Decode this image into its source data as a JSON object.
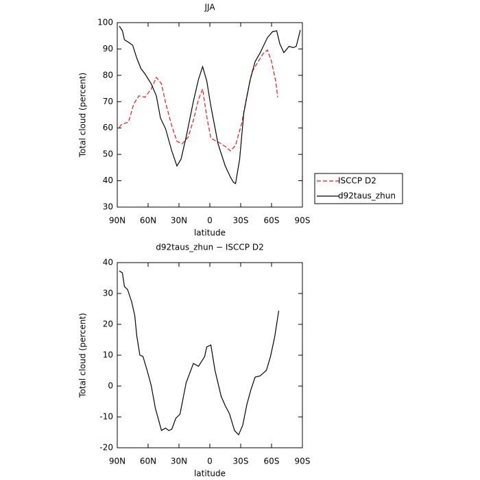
{
  "chart_data": [
    {
      "type": "line",
      "title": "JJA",
      "x_label": "latitude",
      "y_label": "Total cloud (percent)",
      "xlim": [
        90,
        -90
      ],
      "xticks": [
        {
          "value": 90,
          "label": "90N"
        },
        {
          "value": 60,
          "label": "60N"
        },
        {
          "value": 30,
          "label": "30N"
        },
        0,
        {
          "value": -30,
          "label": "30S"
        },
        {
          "value": -60,
          "label": "60S"
        },
        {
          "value": -90,
          "label": "90S"
        }
      ],
      "ylim": [
        30,
        100
      ],
      "yticks": [
        30,
        40,
        50,
        60,
        70,
        80,
        90,
        100
      ],
      "legend": "right",
      "series": [
        {
          "name": "ISCCP D2",
          "color": "#e8141b",
          "line_style": "dashed",
          "x": [
            88,
            86,
            79,
            74,
            69,
            63,
            57,
            52,
            47,
            43,
            37,
            32,
            27,
            21,
            16,
            11,
            7,
            3,
            -1,
            -9,
            -15,
            -20,
            -25,
            -31,
            -36,
            -41,
            -47,
            -52,
            -56,
            -60,
            -64,
            -66
          ],
          "values": [
            60.2,
            61.3,
            62.3,
            69.1,
            72.2,
            71.7,
            74.8,
            79.2,
            76.8,
            69.6,
            60.8,
            55.0,
            54.0,
            56.6,
            62.9,
            70.9,
            74.8,
            64.4,
            56.1,
            54.5,
            53.0,
            51.3,
            53.4,
            61.8,
            72.2,
            81.3,
            85.2,
            88.3,
            89.6,
            85.2,
            77.9,
            71.7
          ]
        },
        {
          "name": "d92taus_zhun",
          "color": "#000000",
          "line_style": "solid",
          "x": [
            88,
            85,
            83,
            79,
            75,
            71,
            67,
            63,
            57,
            52,
            48,
            43,
            37,
            32,
            28,
            23,
            16,
            11,
            7,
            3,
            -1,
            -8,
            -15,
            -20,
            -23,
            -25,
            -29,
            -33,
            -39,
            -44,
            -49,
            -56,
            -61,
            -65,
            -68,
            -72,
            -77,
            -81,
            -84,
            -88
          ],
          "values": [
            98.7,
            96.9,
            93.5,
            92.5,
            91.4,
            86.5,
            82.6,
            80.5,
            76.8,
            72.2,
            63.8,
            59.7,
            51.3,
            45.6,
            48.2,
            56.6,
            70.1,
            78.5,
            83.3,
            77.9,
            68.3,
            54.0,
            45.6,
            41.4,
            39.4,
            38.9,
            48.2,
            65.7,
            77.9,
            85.2,
            88.6,
            94.3,
            96.6,
            96.9,
            92.0,
            88.6,
            91.0,
            90.5,
            91.0,
            97.2
          ]
        }
      ]
    },
    {
      "type": "line",
      "title": "d92taus_zhun − ISCCP D2",
      "x_label": "latitude",
      "y_label": "Total cloud (percent)",
      "xlim": [
        90,
        -90
      ],
      "xticks": [
        {
          "value": 90,
          "label": "90N"
        },
        {
          "value": 60,
          "label": "60N"
        },
        {
          "value": 30,
          "label": "30N"
        },
        0,
        {
          "value": -30,
          "label": "30S"
        },
        {
          "value": -60,
          "label": "60S"
        },
        {
          "value": -90,
          "label": "90S"
        }
      ],
      "ylim": [
        -20,
        40
      ],
      "yticks": [
        -20,
        -10,
        0,
        10,
        20,
        30,
        40
      ],
      "series": [
        {
          "color": "#000000",
          "line_style": "solid",
          "x": [
            88,
            85,
            83,
            80,
            76,
            73,
            71,
            68,
            65,
            61,
            57,
            53,
            47,
            43,
            40,
            37,
            33,
            29,
            23,
            16,
            11,
            5,
            3,
            -1,
            -5,
            -11,
            -15,
            -19,
            -24,
            -28,
            -32,
            -36,
            -40,
            -44,
            -49,
            -55,
            -59,
            -63,
            -67
          ],
          "values": [
            37.3,
            36.7,
            32.2,
            31.3,
            27.3,
            22.9,
            16.2,
            10.0,
            9.6,
            5.1,
            0.2,
            -7.1,
            -14.4,
            -13.6,
            -14.4,
            -14.0,
            -10.4,
            -9.1,
            1.1,
            7.3,
            6.4,
            9.6,
            12.7,
            13.3,
            5.1,
            -3.3,
            -6.4,
            -8.9,
            -14.4,
            -15.8,
            -12.7,
            -6.0,
            -1.1,
            2.9,
            3.3,
            5.1,
            9.6,
            15.8,
            24.4
          ]
        }
      ]
    }
  ]
}
